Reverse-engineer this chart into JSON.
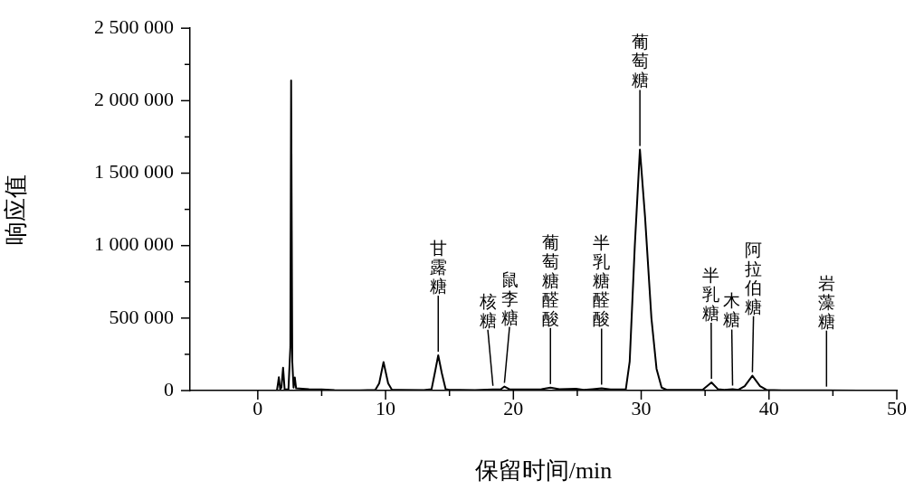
{
  "chart_data": {
    "type": "line",
    "xlabel": "保留时间/min",
    "ylabel": "响应值",
    "grid": false,
    "legend": false,
    "marker": "none",
    "line_style": "solid",
    "xlim": [
      -5.3,
      50
    ],
    "xticks": [
      0,
      {
        "value": 5,
        "label": null
      },
      10,
      {
        "value": 15,
        "label": null
      },
      20,
      {
        "value": 25,
        "label": null
      },
      30,
      {
        "value": 35,
        "label": null
      },
      40,
      {
        "value": 45,
        "label": null
      },
      50
    ],
    "ylim": [
      0,
      2500000
    ],
    "yticks": [
      {
        "value": 0,
        "label": "0"
      },
      {
        "value": 250000,
        "label": null
      },
      {
        "value": 500000,
        "label": "500 000"
      },
      {
        "value": 750000,
        "label": null
      },
      {
        "value": 1000000,
        "label": "1 000 000"
      },
      {
        "value": 1250000,
        "label": null
      },
      {
        "value": 1500000,
        "label": "1 500 000"
      },
      {
        "value": 1750000,
        "label": null
      },
      {
        "value": 2000000,
        "label": "2 000 000"
      },
      {
        "value": 2250000,
        "label": null
      },
      {
        "value": 2500000,
        "label": "2 500 000"
      }
    ],
    "x": [
      1.5,
      1.6,
      1.65,
      1.75,
      1.85,
      1.98,
      2.1,
      2.4,
      2.55,
      2.61,
      2.7,
      2.8,
      2.9,
      3.0,
      4,
      5,
      6,
      8,
      9.2,
      9.5,
      9.84,
      10.2,
      10.5,
      11,
      13,
      13.6,
      13.85,
      14.12,
      14.4,
      14.7,
      15,
      17,
      18.4,
      19,
      19.3,
      19.7,
      21,
      22.2,
      22.9,
      23.6,
      24.9,
      25.5,
      26.2,
      26.9,
      27.6,
      28.8,
      29.1,
      29.5,
      29.9,
      30.3,
      30.8,
      31.2,
      31.6,
      32,
      34.8,
      35.5,
      36,
      36.5,
      37.15,
      37.6,
      38.1,
      38.7,
      39.3,
      39.8,
      41,
      44.5,
      47
    ],
    "series": [
      {
        "color": "#000000",
        "values": [
          0,
          60000,
          92000,
          10000,
          20000,
          158000,
          10000,
          8000,
          300000,
          2140000,
          200000,
          20000,
          90000,
          15000,
          10000,
          8000,
          3000,
          2000,
          4000,
          50000,
          197000,
          50000,
          5000,
          5000,
          3000,
          10000,
          120000,
          243000,
          120000,
          10000,
          5000,
          3000,
          8000,
          8000,
          28000,
          8000,
          8000,
          10000,
          20000,
          10000,
          12000,
          5000,
          10000,
          16000,
          8000,
          10000,
          200000,
          1000000,
          1663000,
          1200000,
          500000,
          150000,
          20000,
          5000,
          5000,
          56000,
          10000,
          5000,
          10000,
          5000,
          30000,
          102000,
          30000,
          5000,
          2000,
          2000,
          0
        ]
      }
    ],
    "annotations": [
      {
        "text": "甘露糖",
        "x": 14.12,
        "y": 243000
      },
      {
        "text": "核糖",
        "x": 18.4,
        "y": 8000
      },
      {
        "text": "鼠李糖",
        "x": 19.3,
        "y": 28000
      },
      {
        "text": "葡萄糖醛酸",
        "x": 22.9,
        "y": 20000
      },
      {
        "text": "半乳糖醛酸",
        "x": 26.9,
        "y": 16000
      },
      {
        "text": "葡萄糖",
        "x": 29.9,
        "y": 1663000
      },
      {
        "text": "半乳糖",
        "x": 35.5,
        "y": 56000
      },
      {
        "text": "木糖",
        "x": 37.15,
        "y": 10000
      },
      {
        "text": "阿拉伯糖",
        "x": 38.7,
        "y": 102000
      },
      {
        "text": "岩藻糖",
        "x": 44.5,
        "y": 2000
      }
    ]
  }
}
